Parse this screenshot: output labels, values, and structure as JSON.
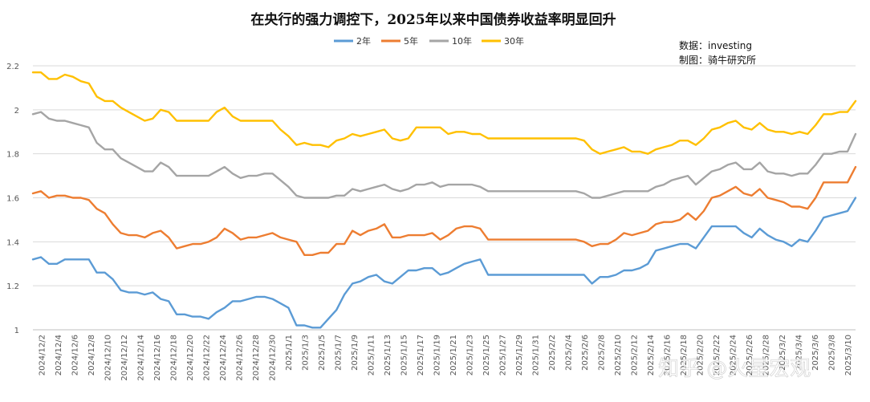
{
  "chart_data": {
    "type": "line",
    "title": "在央行的强力调控下，2025年以来中国债券收益率明显回升",
    "source_line1": "数据：investing",
    "source_line2": "制图：骑牛研究所",
    "watermark": "知乎 @火星宏观",
    "ylim": [
      1,
      2.2
    ],
    "yticks": [
      "1",
      "1.2",
      "1.4",
      "1.6",
      "1.8",
      "2",
      "2.2"
    ],
    "grid": true,
    "legend_position": "top-center",
    "x_tick_labels": [
      "2024/12/2",
      "2024/12/4",
      "2024/12/6",
      "2024/12/8",
      "2024/12/10",
      "2024/12/12",
      "2024/12/14",
      "2024/12/16",
      "2024/12/18",
      "2024/12/20",
      "2024/12/22",
      "2024/12/24",
      "2024/12/26",
      "2024/12/28",
      "2024/12/30",
      "2025/1/1",
      "2025/1/3",
      "2025/1/5",
      "2025/1/7",
      "2025/1/9",
      "2025/1/11",
      "2025/1/13",
      "2025/1/15",
      "2025/1/17",
      "2025/1/19",
      "2025/1/21",
      "2025/1/23",
      "2025/1/25",
      "2025/1/27",
      "2025/1/29",
      "2025/1/31",
      "2025/2/2",
      "2025/2/4",
      "2025/2/6",
      "2025/2/8",
      "2025/2/10",
      "2025/2/12",
      "2025/2/14",
      "2025/2/16",
      "2025/2/18",
      "2025/2/20",
      "2025/2/22",
      "2025/2/24",
      "2025/2/26",
      "2025/2/28",
      "2025/3/2",
      "2025/3/4",
      "2025/3/6",
      "2025/3/8",
      "2025/3/10"
    ],
    "series": [
      {
        "name": "2年",
        "color": "#5B9BD5",
        "values": [
          1.32,
          1.33,
          1.3,
          1.3,
          1.32,
          1.32,
          1.32,
          1.32,
          1.26,
          1.26,
          1.23,
          1.18,
          1.17,
          1.17,
          1.16,
          1.17,
          1.14,
          1.13,
          1.07,
          1.07,
          1.06,
          1.06,
          1.05,
          1.08,
          1.1,
          1.13,
          1.13,
          1.14,
          1.15,
          1.15,
          1.14,
          1.12,
          1.1,
          1.02,
          1.02,
          1.01,
          1.01,
          1.05,
          1.09,
          1.16,
          1.21,
          1.22,
          1.24,
          1.25,
          1.22,
          1.21,
          1.24,
          1.27,
          1.27,
          1.28,
          1.28,
          1.25,
          1.26,
          1.28,
          1.3,
          1.31,
          1.32,
          1.25,
          1.25,
          1.25,
          1.25,
          1.25,
          1.25,
          1.25,
          1.25,
          1.25,
          1.25,
          1.25,
          1.25,
          1.25,
          1.21,
          1.24,
          1.24,
          1.25,
          1.27,
          1.27,
          1.28,
          1.3,
          1.36,
          1.37,
          1.38,
          1.39,
          1.39,
          1.37,
          1.42,
          1.47,
          1.47,
          1.47,
          1.47,
          1.44,
          1.42,
          1.46,
          1.43,
          1.41,
          1.4,
          1.38,
          1.41,
          1.4,
          1.45,
          1.51,
          1.52,
          1.53,
          1.54,
          1.6
        ]
      },
      {
        "name": "5年",
        "color": "#ED7D31",
        "values": [
          1.62,
          1.63,
          1.6,
          1.61,
          1.61,
          1.6,
          1.6,
          1.59,
          1.55,
          1.53,
          1.48,
          1.44,
          1.43,
          1.43,
          1.42,
          1.44,
          1.45,
          1.42,
          1.37,
          1.38,
          1.39,
          1.39,
          1.4,
          1.42,
          1.46,
          1.44,
          1.41,
          1.42,
          1.42,
          1.43,
          1.44,
          1.42,
          1.41,
          1.4,
          1.34,
          1.34,
          1.35,
          1.35,
          1.39,
          1.39,
          1.45,
          1.43,
          1.45,
          1.46,
          1.48,
          1.42,
          1.42,
          1.43,
          1.43,
          1.43,
          1.44,
          1.41,
          1.43,
          1.46,
          1.47,
          1.47,
          1.46,
          1.41,
          1.41,
          1.41,
          1.41,
          1.41,
          1.41,
          1.41,
          1.41,
          1.41,
          1.41,
          1.41,
          1.41,
          1.4,
          1.38,
          1.39,
          1.39,
          1.41,
          1.44,
          1.43,
          1.44,
          1.45,
          1.48,
          1.49,
          1.49,
          1.5,
          1.53,
          1.5,
          1.54,
          1.6,
          1.61,
          1.63,
          1.65,
          1.62,
          1.61,
          1.64,
          1.6,
          1.59,
          1.58,
          1.56,
          1.56,
          1.55,
          1.6,
          1.67,
          1.67,
          1.67,
          1.67,
          1.74
        ]
      },
      {
        "name": "10年",
        "color": "#A5A5A5",
        "values": [
          1.98,
          1.99,
          1.96,
          1.95,
          1.95,
          1.94,
          1.93,
          1.92,
          1.85,
          1.82,
          1.82,
          1.78,
          1.76,
          1.74,
          1.72,
          1.72,
          1.76,
          1.74,
          1.7,
          1.7,
          1.7,
          1.7,
          1.7,
          1.72,
          1.74,
          1.71,
          1.69,
          1.7,
          1.7,
          1.71,
          1.71,
          1.68,
          1.65,
          1.61,
          1.6,
          1.6,
          1.6,
          1.6,
          1.61,
          1.61,
          1.64,
          1.63,
          1.64,
          1.65,
          1.66,
          1.64,
          1.63,
          1.64,
          1.66,
          1.66,
          1.67,
          1.65,
          1.66,
          1.66,
          1.66,
          1.66,
          1.65,
          1.63,
          1.63,
          1.63,
          1.63,
          1.63,
          1.63,
          1.63,
          1.63,
          1.63,
          1.63,
          1.63,
          1.63,
          1.62,
          1.6,
          1.6,
          1.61,
          1.62,
          1.63,
          1.63,
          1.63,
          1.63,
          1.65,
          1.66,
          1.68,
          1.69,
          1.7,
          1.66,
          1.69,
          1.72,
          1.73,
          1.75,
          1.76,
          1.73,
          1.73,
          1.76,
          1.72,
          1.71,
          1.71,
          1.7,
          1.71,
          1.71,
          1.75,
          1.8,
          1.8,
          1.81,
          1.81,
          1.89
        ]
      },
      {
        "name": "30年",
        "color": "#FFC000",
        "values": [
          2.17,
          2.17,
          2.14,
          2.14,
          2.16,
          2.15,
          2.13,
          2.12,
          2.06,
          2.04,
          2.04,
          2.01,
          1.99,
          1.97,
          1.95,
          1.96,
          2.0,
          1.99,
          1.95,
          1.95,
          1.95,
          1.95,
          1.95,
          1.99,
          2.01,
          1.97,
          1.95,
          1.95,
          1.95,
          1.95,
          1.95,
          1.91,
          1.88,
          1.84,
          1.85,
          1.84,
          1.84,
          1.83,
          1.86,
          1.87,
          1.89,
          1.88,
          1.89,
          1.9,
          1.91,
          1.87,
          1.86,
          1.87,
          1.92,
          1.92,
          1.92,
          1.92,
          1.89,
          1.9,
          1.9,
          1.89,
          1.89,
          1.87,
          1.87,
          1.87,
          1.87,
          1.87,
          1.87,
          1.87,
          1.87,
          1.87,
          1.87,
          1.87,
          1.87,
          1.86,
          1.82,
          1.8,
          1.81,
          1.82,
          1.83,
          1.81,
          1.81,
          1.8,
          1.82,
          1.83,
          1.84,
          1.86,
          1.86,
          1.84,
          1.87,
          1.91,
          1.92,
          1.94,
          1.95,
          1.92,
          1.91,
          1.94,
          1.91,
          1.9,
          1.9,
          1.89,
          1.9,
          1.89,
          1.93,
          1.98,
          1.98,
          1.99,
          1.99,
          2.04
        ]
      }
    ]
  }
}
